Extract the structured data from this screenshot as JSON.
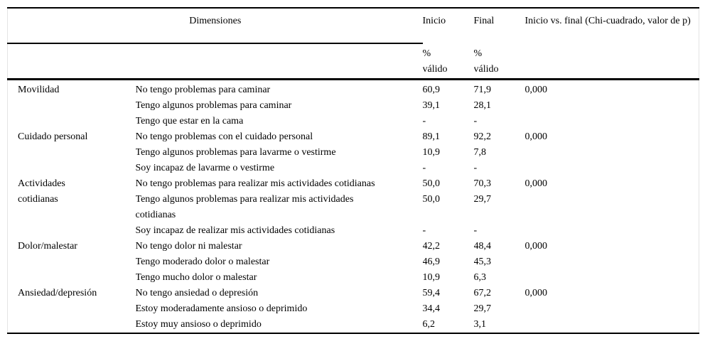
{
  "table": {
    "header": {
      "dimensiones": "Dimensiones",
      "inicio": "Inicio",
      "final": "Final",
      "chi": "Inicio vs. final (Chi-cuadrado, valor de p)",
      "valid_label": "% válido"
    },
    "sections": [
      {
        "dimension": "Movilidad",
        "rows": [
          {
            "desc": "No tengo problemas para caminar",
            "inicio": "60,9",
            "final": "71,9",
            "p": "0,000"
          },
          {
            "desc": "Tengo algunos problemas para caminar",
            "inicio": "39,1",
            "final": "28,1",
            "p": ""
          },
          {
            "desc": "Tengo que estar en la cama",
            "inicio": "-",
            "final": "-",
            "p": ""
          }
        ]
      },
      {
        "dimension": "Cuidado personal",
        "rows": [
          {
            "desc": "No tengo problemas con el cuidado personal",
            "inicio": "89,1",
            "final": "92,2",
            "p": "0,000"
          },
          {
            "desc": "Tengo algunos problemas para lavarme o vestirme",
            "inicio": "10,9",
            "final": "7,8",
            "p": ""
          },
          {
            "desc": "Soy incapaz de lavarme o vestirme",
            "inicio": "-",
            "final": "-",
            "p": ""
          }
        ]
      },
      {
        "dimension": "Actividades cotidianas",
        "rows": [
          {
            "desc": "No tengo problemas para realizar mis actividades cotidianas",
            "inicio": "50,0",
            "final": "70,3",
            "p": "0,000"
          },
          {
            "desc": "Tengo algunos problemas para realizar mis actividades cotidianas",
            "inicio": "50,0",
            "final": "29,7",
            "p": ""
          },
          {
            "desc": "Soy incapaz de realizar mis actividades cotidianas",
            "inicio": "-",
            "final": "-",
            "p": ""
          }
        ]
      },
      {
        "dimension": "Dolor/malestar",
        "rows": [
          {
            "desc": "No tengo dolor ni malestar",
            "inicio": "42,2",
            "final": "48,4",
            "p": "0,000"
          },
          {
            "desc": "Tengo moderado dolor o malestar",
            "inicio": "46,9",
            "final": "45,3",
            "p": ""
          },
          {
            "desc": "Tengo mucho dolor o malestar",
            "inicio": "10,9",
            "final": "6,3",
            "p": ""
          }
        ]
      },
      {
        "dimension": "Ansiedad/depresión",
        "rows": [
          {
            "desc": "No tengo ansiedad o depresión",
            "inicio": "59,4",
            "final": "67,2",
            "p": "0,000"
          },
          {
            "desc": "Estoy moderadamente ansioso o deprimido",
            "inicio": "34,4",
            "final": "29,7",
            "p": ""
          },
          {
            "desc": "Estoy muy ansioso o deprimido",
            "inicio": "6,2",
            "final": "3,1",
            "p": ""
          }
        ]
      }
    ]
  }
}
